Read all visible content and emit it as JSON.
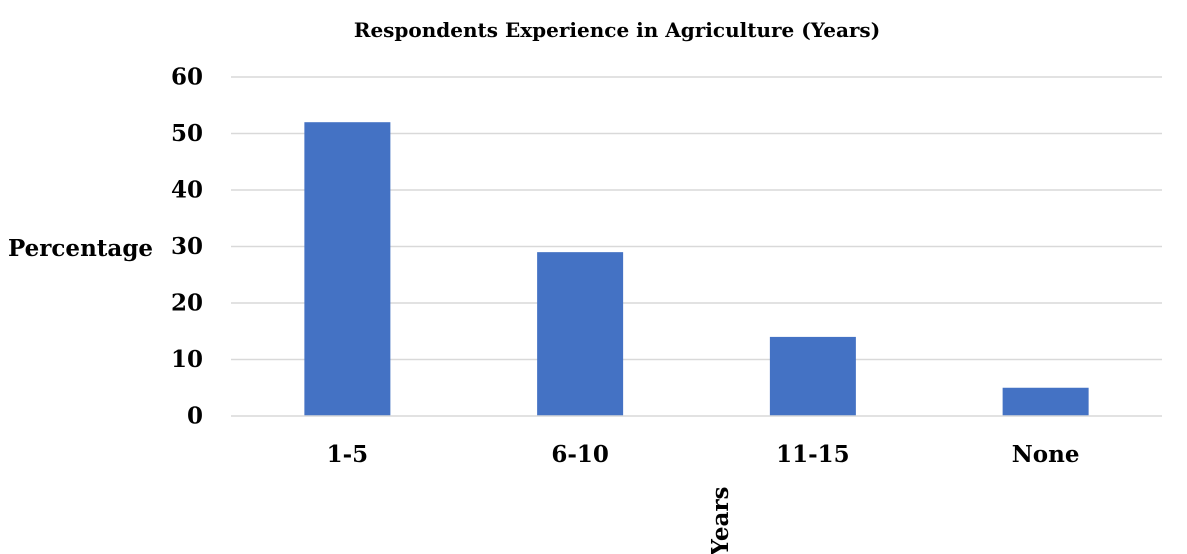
{
  "chart_data": {
    "type": "bar",
    "title": "Respondents Experience in Agriculture (Years)",
    "xlabel": "Years",
    "ylabel": "Percentage",
    "categories": [
      "1-5",
      "6-10",
      "11-15",
      "None"
    ],
    "values": [
      52,
      29,
      14,
      5
    ],
    "ylim": [
      0,
      60
    ],
    "yticks": [
      "0",
      "10",
      "20",
      "30",
      "40",
      "50",
      "60"
    ],
    "grid": true,
    "legend": "none",
    "bar_color": "#4472C4",
    "grid_color": "#D9D9D9"
  }
}
